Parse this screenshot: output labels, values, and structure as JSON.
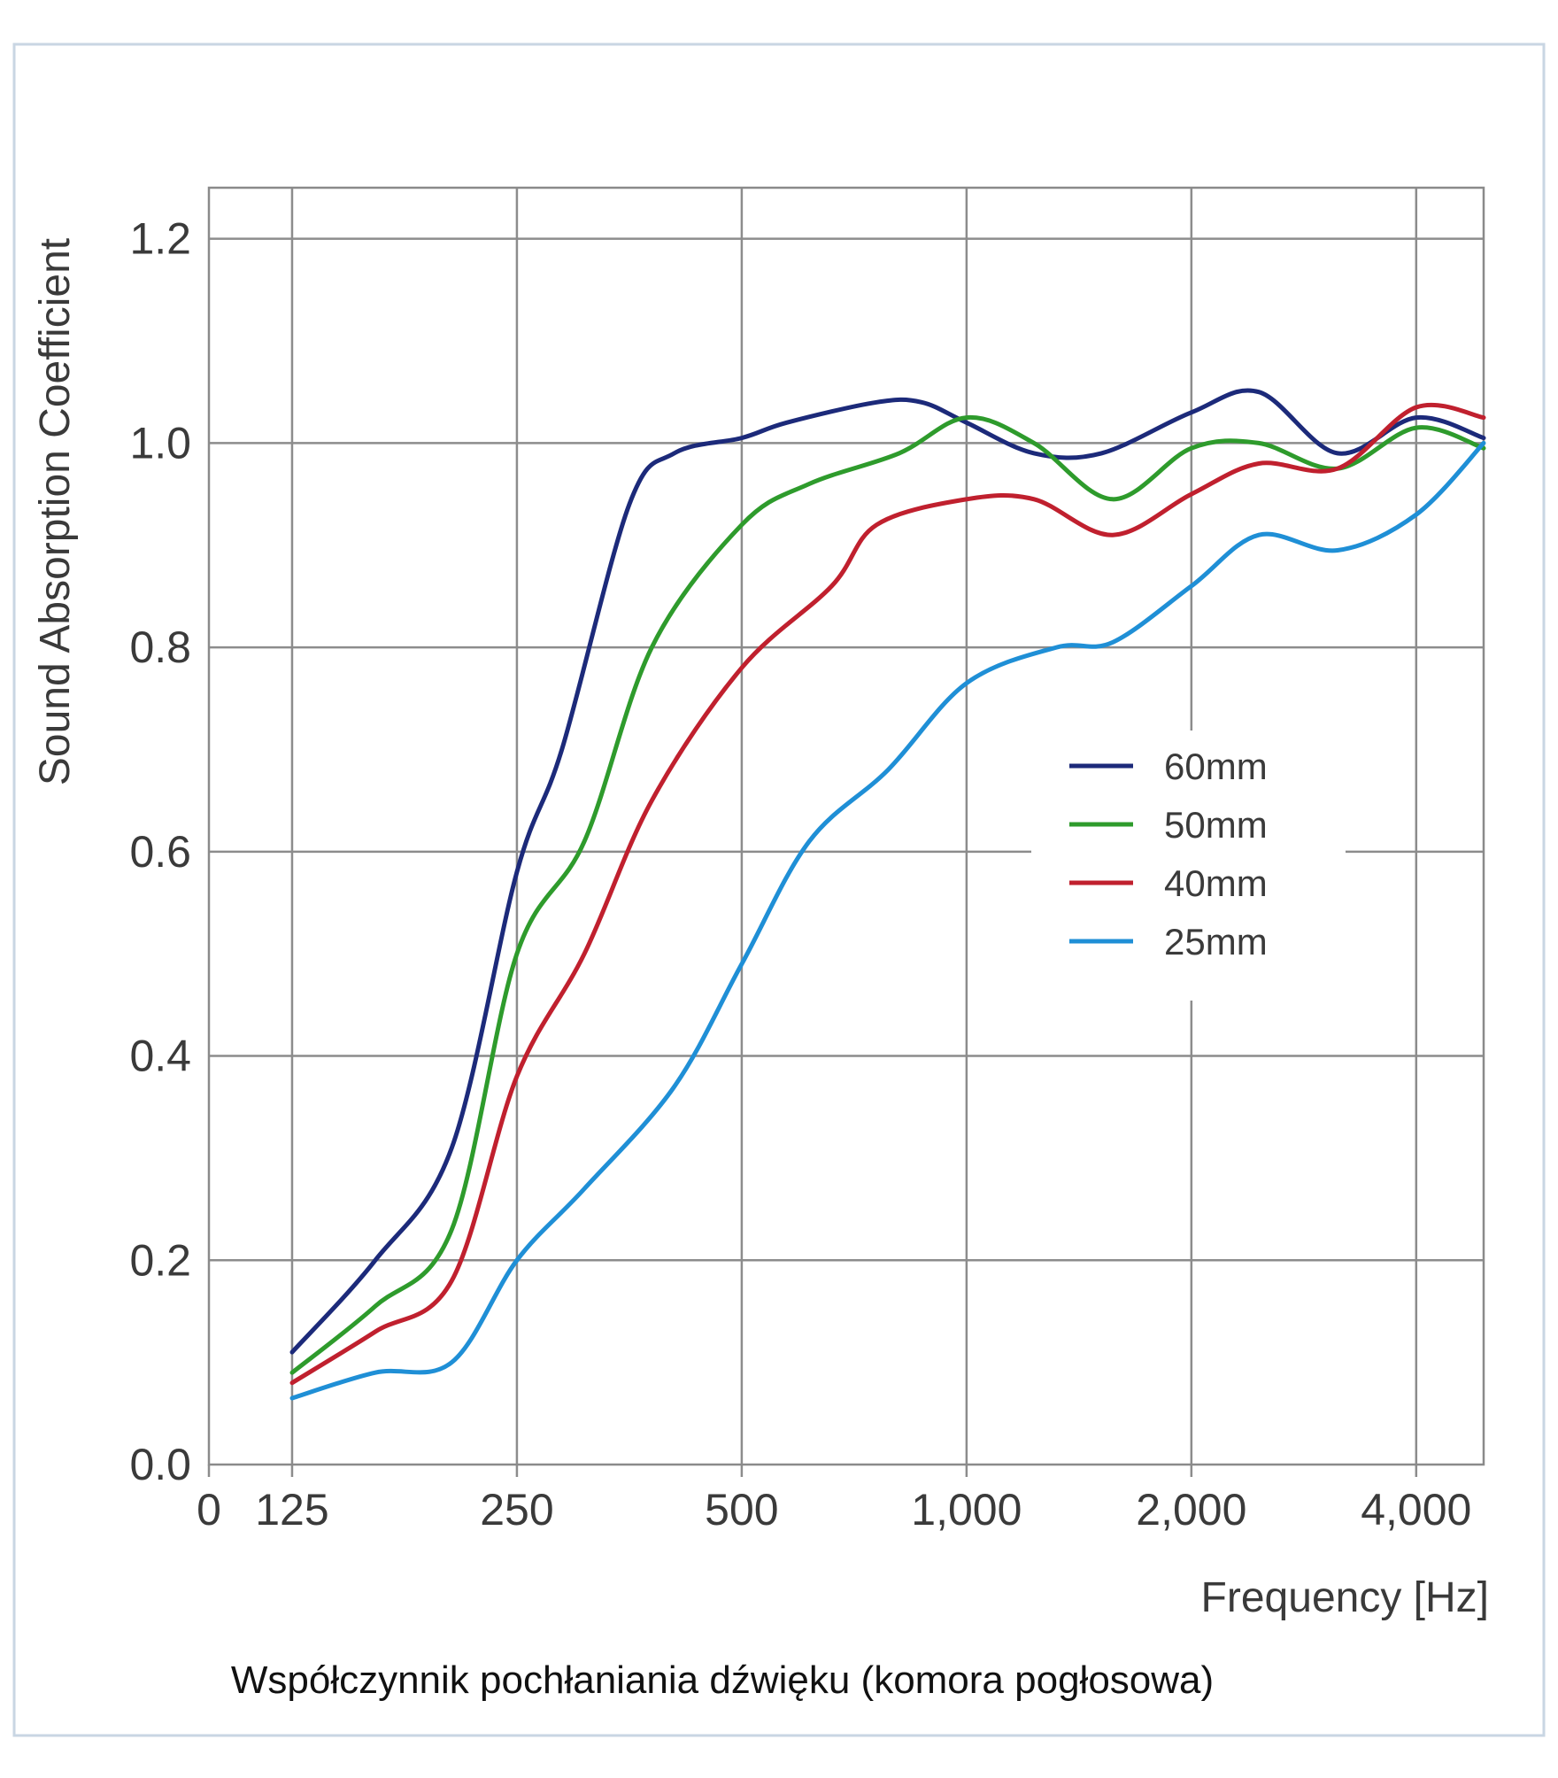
{
  "chart_data": {
    "type": "line",
    "title": "",
    "caption": "Współczynnik pochłaniania dźwięku (komora pogłosowa)",
    "xlabel": "Frequency [Hz]",
    "ylabel": "Sound Absorption Coefficient",
    "x_scale": "octave (log2)",
    "x_ticks": [
      {
        "value": 0,
        "label": "0"
      },
      {
        "value": 125,
        "label": "125"
      },
      {
        "value": 250,
        "label": "250"
      },
      {
        "value": 500,
        "label": "500"
      },
      {
        "value": 1000,
        "label": "1,000"
      },
      {
        "value": 2000,
        "label": "2,000"
      },
      {
        "value": 4000,
        "label": "4,000"
      }
    ],
    "y_ticks": [
      {
        "value": 0.0,
        "label": "0.0"
      },
      {
        "value": 0.2,
        "label": "0.2"
      },
      {
        "value": 0.4,
        "label": "0.4"
      },
      {
        "value": 0.6,
        "label": "0.6"
      },
      {
        "value": 0.8,
        "label": "0.8"
      },
      {
        "value": 1.0,
        "label": "1.0"
      },
      {
        "value": 1.2,
        "label": "1.2"
      }
    ],
    "ylim": [
      0,
      1.25
    ],
    "grid": true,
    "legend_position": "center-right",
    "series": [
      {
        "name": "60mm",
        "color": "#1c2a7a",
        "points": [
          [
            0.0,
            0.11
          ],
          [
            0.37,
            0.2
          ],
          [
            0.71,
            0.31
          ],
          [
            1.0,
            0.58
          ],
          [
            1.2,
            0.7
          ],
          [
            1.5,
            0.94
          ],
          [
            1.7,
            0.99
          ],
          [
            2.0,
            1.005
          ],
          [
            2.2,
            1.02
          ],
          [
            2.6,
            1.04
          ],
          [
            2.8,
            1.04
          ],
          [
            3.0,
            1.02
          ],
          [
            3.3,
            0.99
          ],
          [
            3.6,
            0.99
          ],
          [
            4.0,
            1.03
          ],
          [
            4.3,
            1.05
          ],
          [
            4.65,
            0.99
          ],
          [
            5.0,
            1.025
          ],
          [
            5.3,
            1.005
          ]
        ]
      },
      {
        "name": "50mm",
        "color": "#2e9b2c",
        "points": [
          [
            0.0,
            0.09
          ],
          [
            0.37,
            0.155
          ],
          [
            0.71,
            0.23
          ],
          [
            1.0,
            0.5
          ],
          [
            1.3,
            0.61
          ],
          [
            1.6,
            0.8
          ],
          [
            2.0,
            0.92
          ],
          [
            2.3,
            0.96
          ],
          [
            2.7,
            0.99
          ],
          [
            3.0,
            1.025
          ],
          [
            3.3,
            1.0
          ],
          [
            3.65,
            0.945
          ],
          [
            4.0,
            0.995
          ],
          [
            4.3,
            1.0
          ],
          [
            4.65,
            0.975
          ],
          [
            5.0,
            1.015
          ],
          [
            5.3,
            0.995
          ]
        ]
      },
      {
        "name": "40mm",
        "color": "#c0202e",
        "points": [
          [
            0.0,
            0.08
          ],
          [
            0.37,
            0.13
          ],
          [
            0.71,
            0.18
          ],
          [
            1.0,
            0.38
          ],
          [
            1.3,
            0.5
          ],
          [
            1.6,
            0.65
          ],
          [
            2.0,
            0.78
          ],
          [
            2.4,
            0.86
          ],
          [
            2.6,
            0.92
          ],
          [
            3.0,
            0.945
          ],
          [
            3.3,
            0.945
          ],
          [
            3.65,
            0.91
          ],
          [
            4.0,
            0.95
          ],
          [
            4.3,
            0.98
          ],
          [
            4.65,
            0.975
          ],
          [
            5.0,
            1.035
          ],
          [
            5.3,
            1.025
          ]
        ]
      },
      {
        "name": "25mm",
        "color": "#1f8fd6",
        "points": [
          [
            0.0,
            0.065
          ],
          [
            0.37,
            0.09
          ],
          [
            0.71,
            0.1
          ],
          [
            1.0,
            0.2
          ],
          [
            1.3,
            0.27
          ],
          [
            1.7,
            0.37
          ],
          [
            2.0,
            0.49
          ],
          [
            2.3,
            0.61
          ],
          [
            2.65,
            0.68
          ],
          [
            3.0,
            0.765
          ],
          [
            3.4,
            0.8
          ],
          [
            3.65,
            0.805
          ],
          [
            4.0,
            0.86
          ],
          [
            4.3,
            0.91
          ],
          [
            4.65,
            0.895
          ],
          [
            5.0,
            0.93
          ],
          [
            5.3,
            1.0
          ]
        ]
      }
    ]
  }
}
